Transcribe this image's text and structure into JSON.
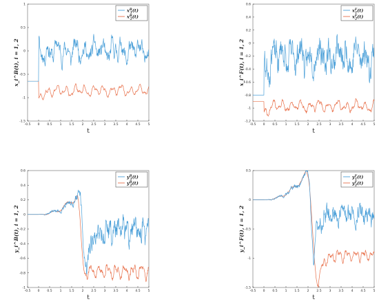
{
  "colors": {
    "series1": "#4a9fd8",
    "series2": "#e8704a",
    "axis": "#333333",
    "frame": "#666666"
  },
  "chart_data": [
    {
      "type": "line",
      "panel": "top-left",
      "xlabel": "t",
      "ylabel": "x_i^B(t), i = 1, 2",
      "xlim": [
        -0.5,
        5
      ],
      "ylim": [
        -1.5,
        1
      ],
      "xticks": [
        "-0.5",
        "0",
        "0.5",
        "1",
        "1.5",
        "2",
        "2.5",
        "3",
        "3.5",
        "4",
        "4.5",
        "5"
      ],
      "yticks": [
        "1",
        "0.5",
        "0",
        "-0.5",
        "-1",
        "-1.5"
      ],
      "legend": {
        "position": "top-right",
        "entries": [
          {
            "base": "x",
            "sup": "B",
            "sub": "1",
            "arg": "(t)"
          },
          {
            "base": "x",
            "sup": "B",
            "sub": "2",
            "arg": "(t)"
          }
        ]
      },
      "series": [
        {
          "pre": -0.65,
          "switch": 0.0,
          "jump": -0.05,
          "level": 0.0,
          "amp": 0.22,
          "noise": 0.12,
          "seed": 11,
          "mode": "osc"
        },
        {
          "pre": -0.65,
          "switch": 0.0,
          "jump": -1.1,
          "level": -0.85,
          "amp": 0.13,
          "noise": 0.02,
          "seed": 5,
          "mode": "osc"
        }
      ]
    },
    {
      "type": "line",
      "panel": "top-right",
      "xlabel": "t",
      "ylabel": "x_i^F(t), i = 1, 2",
      "xlim": [
        -0.5,
        5
      ],
      "ylim": [
        -1.2,
        0.6
      ],
      "xticks": [
        "-0.5",
        "0",
        "0.5",
        "1",
        "1.5",
        "2",
        "2.5",
        "3",
        "3.5",
        "4",
        "4.5",
        "5"
      ],
      "yticks": [
        "0.6",
        "0.4",
        "0.2",
        "0",
        "-0.2",
        "-0.4",
        "-0.6",
        "-0.8",
        "-1",
        "-1.2"
      ],
      "legend": {
        "position": "top-right",
        "entries": [
          {
            "base": "x",
            "sup": "F",
            "sub": "1",
            "arg": "(t)"
          },
          {
            "base": "x",
            "sup": "F",
            "sub": "2",
            "arg": "(t)"
          }
        ]
      },
      "series": [
        {
          "pre": -0.8,
          "switch": 0.0,
          "jump": -0.4,
          "level": -0.2,
          "amp": 0.22,
          "noise": 0.16,
          "seed": 23,
          "mode": "osc"
        },
        {
          "pre": -0.9,
          "switch": 0.0,
          "jump": -1.1,
          "level": -0.97,
          "amp": 0.1,
          "noise": 0.02,
          "seed": 7,
          "mode": "osc"
        }
      ]
    },
    {
      "type": "line",
      "panel": "bottom-left",
      "xlabel": "t",
      "ylabel": "y_i^B(t), i = 1, 2",
      "xlim": [
        -0.5,
        5
      ],
      "ylim": [
        -1,
        0.6
      ],
      "xticks": [
        "-0.5",
        "0",
        "0.5",
        "1",
        "1.5",
        "2",
        "2.5",
        "3",
        "3.5",
        "4",
        "4.5",
        "5"
      ],
      "yticks": [
        "0.6",
        "0.4",
        "0.2",
        "0",
        "-0.2",
        "-0.4",
        "-0.6",
        "-0.8",
        "-1"
      ],
      "legend": {
        "position": "top-right",
        "entries": [
          {
            "base": "y",
            "sup": "B",
            "sub": "1",
            "arg": "(t)"
          },
          {
            "base": "y",
            "sup": "B",
            "sub": "2",
            "arg": "(t)"
          }
        ]
      },
      "series": [
        {
          "mode": "wave",
          "seed": 31,
          "peak": 0.28,
          "trough": -0.78,
          "settle": -0.22,
          "noise": 0.12,
          "tpk": 1.85,
          "ttr": 2.15
        },
        {
          "mode": "wave",
          "seed": 9,
          "peak": 0.26,
          "trough": -0.8,
          "settle": -0.78,
          "noise": 0.03,
          "tpk": 1.75,
          "ttr": 2.1
        }
      ]
    },
    {
      "type": "line",
      "panel": "bottom-right",
      "xlabel": "t",
      "ylabel": "y_i^F(t), i = 1, 2",
      "xlim": [
        -0.5,
        5
      ],
      "ylim": [
        -1.5,
        0.5
      ],
      "xticks": [
        "-0.5",
        "0",
        "0.5",
        "1",
        "1.5",
        "2",
        "2.5",
        "3",
        "3.5",
        "4",
        "4.5",
        "5"
      ],
      "yticks": [
        "0.5",
        "0",
        "-0.5",
        "-1",
        "-1.5"
      ],
      "legend": {
        "position": "top-right",
        "entries": [
          {
            "base": "y",
            "sup": "F",
            "sub": "1",
            "arg": "(t)"
          },
          {
            "base": "y",
            "sup": "F",
            "sub": "2",
            "arg": "(t)"
          }
        ]
      },
      "series": [
        {
          "mode": "wave",
          "seed": 41,
          "peak": 0.48,
          "trough": -0.9,
          "settle": -0.25,
          "noise": 0.12,
          "tpk": 2.0,
          "ttr": 2.25
        },
        {
          "mode": "wave",
          "seed": 13,
          "peak": 0.46,
          "trough": -1.45,
          "settle": -0.95,
          "noise": 0.03,
          "tpk": 1.95,
          "ttr": 2.45
        }
      ]
    }
  ]
}
